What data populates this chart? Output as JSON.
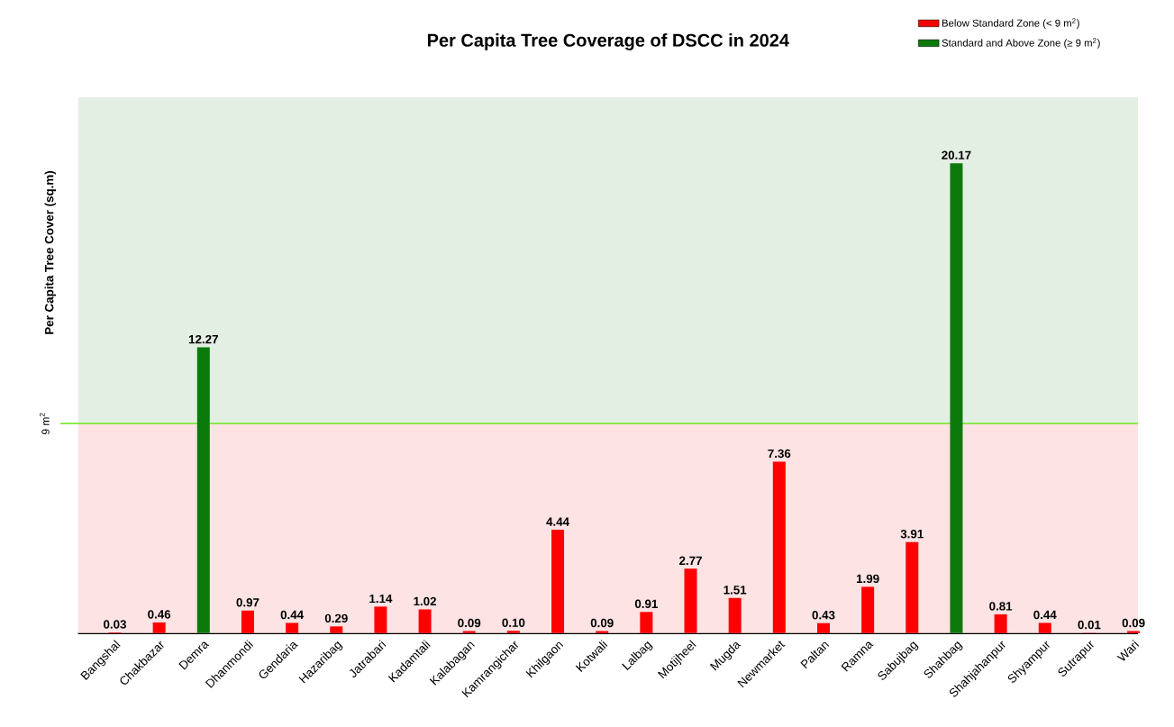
{
  "chart_data": {
    "type": "bar",
    "title": "Per Capita Tree Coverage of DSCC in 2024",
    "ylabel": "Per Capita Tree Cover (sq.m)",
    "categories": [
      "Bangshal",
      "Chakbazar",
      "Demra",
      "Dhanmondi",
      "Gendaria",
      "Hazaribag",
      "Jatrabari",
      "Kadamtali",
      "Kalabagan",
      "Kamrangichar",
      "Khilgaon",
      "Kotwali",
      "Lalbag",
      "Motijheel",
      "Mugda",
      "Newmarket",
      "Paltan",
      "Ramna",
      "Sabujbag",
      "Shahbag",
      "Shahjahanpur",
      "Shyampur",
      "Sutrapur",
      "Wari"
    ],
    "series": [
      {
        "name": "Below Standard Zone (< 9 m$^{2}$)",
        "color": "#ff0000",
        "values": [
          0.03,
          0.46,
          null,
          0.97,
          0.44,
          0.29,
          1.14,
          1.02,
          0.09,
          0.1,
          4.44,
          0.09,
          0.91,
          2.77,
          1.51,
          7.36,
          0.43,
          1.99,
          3.91,
          null,
          0.81,
          0.44,
          0.01,
          0.09
        ],
        "value_labels": [
          "0.03",
          "0.46",
          null,
          "0.97",
          "0.44",
          "0.29",
          "1.14",
          "1.02",
          "0.09",
          "0.10",
          "4.44",
          "0.09",
          "0.91",
          "2.77",
          "1.51",
          "7.36",
          "0.43",
          "1.99",
          "3.91",
          null,
          "0.81",
          "0.44",
          "0.01",
          "0.09"
        ]
      },
      {
        "name": "Standard and Above Zone (≥ 9 m$^{2}$)",
        "color": "#0b7a0b",
        "values": [
          null,
          null,
          12.27,
          null,
          null,
          null,
          null,
          null,
          null,
          null,
          null,
          null,
          null,
          null,
          null,
          null,
          null,
          null,
          null,
          20.17,
          null,
          null,
          null,
          null
        ],
        "value_labels": [
          null,
          null,
          "12.27",
          null,
          null,
          null,
          null,
          null,
          null,
          null,
          null,
          null,
          null,
          null,
          null,
          null,
          null,
          null,
          null,
          "20.17",
          null,
          null,
          null,
          null
        ]
      }
    ],
    "ylim": [
      0,
      23
    ],
    "bands": [
      {
        "axis": "y",
        "from": 0,
        "to": 9,
        "color": "#fde3e3"
      },
      {
        "axis": "y",
        "from": 9,
        "to": 23,
        "color": "#e4efe4"
      }
    ],
    "ref_lines": [
      {
        "axis": "y",
        "value": 9,
        "label": "9 m$^{2}$",
        "color": "#7fe83a"
      }
    ],
    "legend": "top right",
    "tick_labels": "x"
  }
}
